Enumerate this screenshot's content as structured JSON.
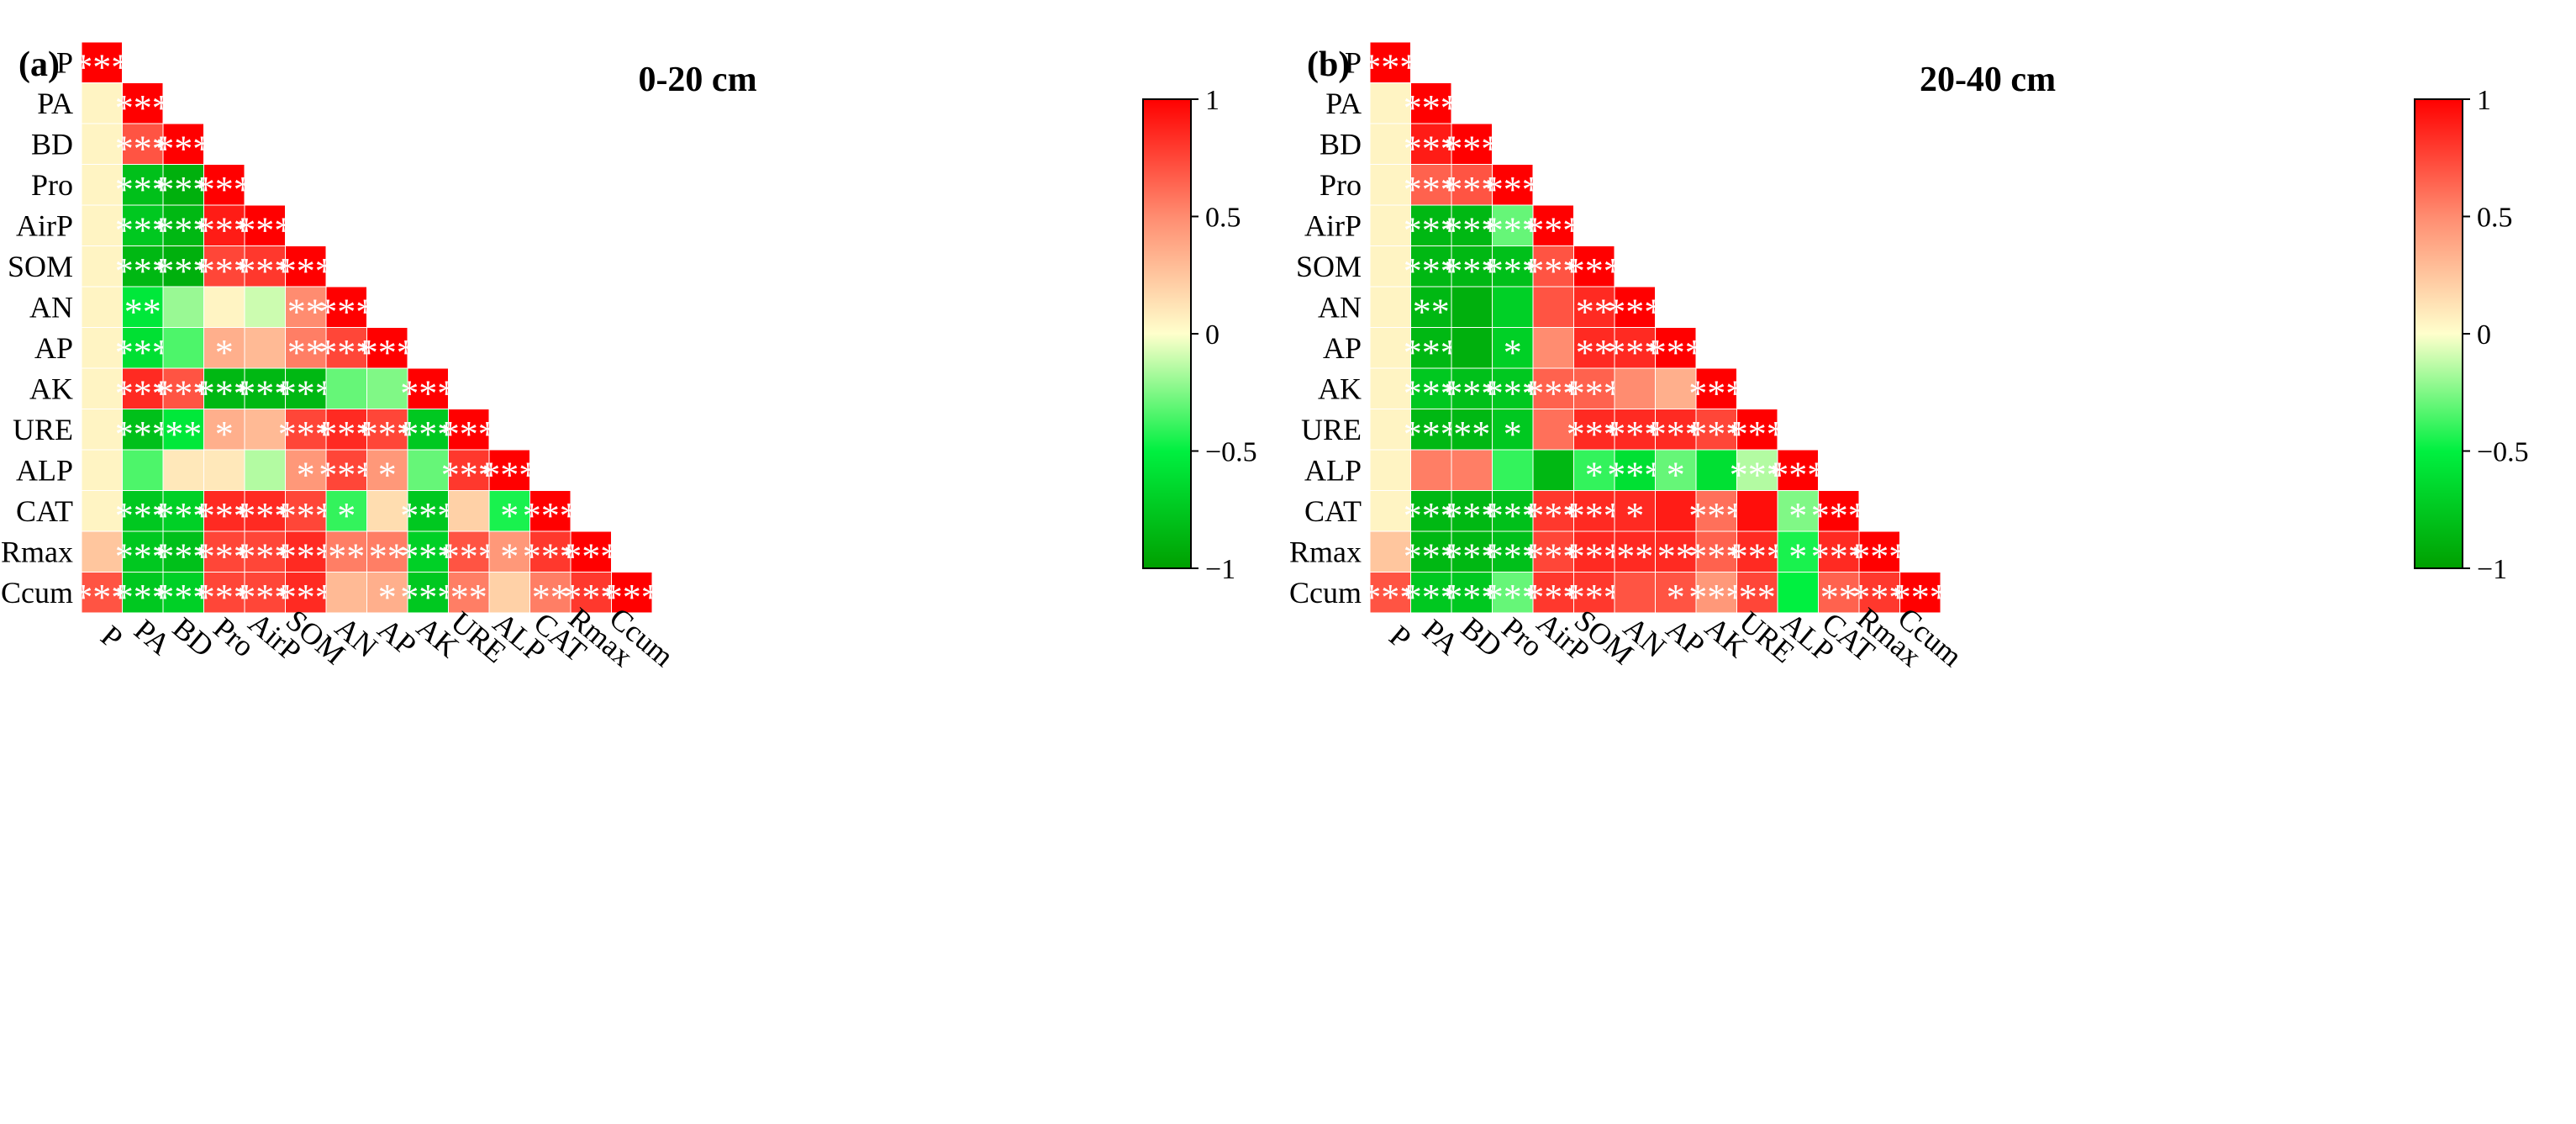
{
  "chart_data": [
    {
      "type": "heatmap",
      "panel_label": "(a)",
      "title": "0-20 cm",
      "variables": [
        "P",
        "PA",
        "BD",
        "Pro",
        "AirP",
        "SOM",
        "AN",
        "AP",
        "AK",
        "URE",
        "ALP",
        "CAT",
        "Rmax",
        "Ccum"
      ],
      "colorbar": {
        "min": -1,
        "max": 1,
        "ticks": [
          1,
          0.5,
          0,
          -0.5,
          -1
        ],
        "tick_labels": [
          "1",
          "0.5",
          "0",
          "−0.5",
          "−1"
        ],
        "colors": {
          "neg": "#00a000",
          "negMid": "#00f040",
          "zero": "#ffffcc",
          "posMid": "#ff8c70",
          "pos": "#ff0000"
        }
      },
      "rows": [
        {
          "var": "P",
          "r": [
            1.0
          ],
          "sig": [
            "***"
          ]
        },
        {
          "var": "PA",
          "r": [
            0.05,
            1.0
          ],
          "sig": [
            "",
            "***"
          ]
        },
        {
          "var": "BD",
          "r": [
            0.05,
            0.7,
            1.0
          ],
          "sig": [
            "",
            "***",
            "***"
          ]
        },
        {
          "var": "Pro",
          "r": [
            0.05,
            -0.8,
            -0.9,
            1.0
          ],
          "sig": [
            "",
            "***",
            "***",
            "***"
          ]
        },
        {
          "var": "AirP",
          "r": [
            0.05,
            -0.75,
            -0.85,
            0.9,
            1.0
          ],
          "sig": [
            "",
            "***",
            "***",
            "***",
            "***"
          ]
        },
        {
          "var": "SOM",
          "r": [
            0.05,
            -0.85,
            -0.9,
            0.75,
            0.8,
            1.0
          ],
          "sig": [
            "",
            "***",
            "***",
            "***",
            "***",
            "***"
          ]
        },
        {
          "var": "AN",
          "r": [
            0.05,
            -0.55,
            -0.2,
            0.05,
            -0.1,
            0.5,
            1.0
          ],
          "sig": [
            "",
            "**",
            "",
            "",
            "",
            "**",
            "***"
          ]
        },
        {
          "var": "AP",
          "r": [
            0.05,
            -0.6,
            -0.35,
            0.35,
            0.3,
            0.55,
            0.75,
            1.0
          ],
          "sig": [
            "",
            "***",
            "",
            "*",
            "",
            "**",
            "***",
            "***"
          ]
        },
        {
          "var": "AK",
          "r": [
            0.05,
            0.85,
            0.7,
            -0.85,
            -0.85,
            -0.85,
            -0.3,
            -0.25,
            1.0
          ],
          "sig": [
            "",
            "***",
            "***",
            "***",
            "***",
            "***",
            "",
            "",
            "***"
          ]
        },
        {
          "var": "URE",
          "r": [
            0.05,
            -0.8,
            -0.55,
            0.35,
            0.3,
            0.75,
            0.85,
            0.75,
            -0.75,
            1.0
          ],
          "sig": [
            "",
            "***",
            "**",
            "*",
            "",
            "***",
            "***",
            "***",
            "***",
            "***"
          ]
        },
        {
          "var": "ALP",
          "r": [
            0.05,
            -0.35,
            0.1,
            0.1,
            -0.15,
            0.45,
            0.75,
            0.45,
            -0.3,
            0.8,
            1.0
          ],
          "sig": [
            "",
            "",
            "",
            "",
            "",
            "*",
            "***",
            "*",
            "",
            "***",
            "***"
          ]
        },
        {
          "var": "CAT",
          "r": [
            0.05,
            -0.75,
            -0.7,
            0.85,
            0.85,
            0.75,
            -0.4,
            0.15,
            -0.75,
            0.2,
            -0.45,
            1.0
          ],
          "sig": [
            "",
            "***",
            "***",
            "***",
            "***",
            "***",
            "*",
            "",
            "***",
            "",
            "*",
            "***"
          ]
        },
        {
          "var": "Rmax",
          "r": [
            0.25,
            -0.75,
            -0.8,
            0.75,
            0.75,
            0.85,
            0.55,
            0.55,
            -0.7,
            0.7,
            0.45,
            0.8,
            1.0
          ],
          "sig": [
            "",
            "***",
            "***",
            "***",
            "***",
            "***",
            "**",
            "**",
            "***",
            "***",
            "*",
            "***",
            "***"
          ]
        },
        {
          "var": "Ccum",
          "r": [
            0.7,
            -0.75,
            -0.7,
            0.75,
            0.75,
            0.85,
            0.3,
            0.35,
            -0.75,
            0.55,
            0.2,
            0.55,
            0.8,
            1.0
          ],
          "sig": [
            "***",
            "***",
            "***",
            "***",
            "***",
            "***",
            "",
            "*",
            "***",
            "**",
            "",
            "**",
            "***",
            "***"
          ]
        }
      ]
    },
    {
      "type": "heatmap",
      "panel_label": "(b)",
      "title": "20-40 cm",
      "variables": [
        "P",
        "PA",
        "BD",
        "Pro",
        "AirP",
        "SOM",
        "AN",
        "AP",
        "AK",
        "URE",
        "ALP",
        "CAT",
        "Rmax",
        "Ccum"
      ],
      "colorbar": {
        "min": -1,
        "max": 1,
        "ticks": [
          1,
          0.5,
          0,
          -0.5,
          -1
        ],
        "tick_labels": [
          "1",
          "0.5",
          "0",
          "−0.5",
          "−1"
        ],
        "colors": {
          "neg": "#00a000",
          "negMid": "#00f040",
          "zero": "#ffffcc",
          "posMid": "#ff8c70",
          "pos": "#ff0000"
        }
      },
      "rows": [
        {
          "var": "P",
          "r": [
            1.0
          ],
          "sig": [
            "***"
          ]
        },
        {
          "var": "PA",
          "r": [
            0.05,
            1.0
          ],
          "sig": [
            "",
            "***"
          ]
        },
        {
          "var": "BD",
          "r": [
            0.05,
            0.9,
            1.0
          ],
          "sig": [
            "",
            "***",
            "***"
          ]
        },
        {
          "var": "Pro",
          "r": [
            0.05,
            0.65,
            0.7,
            1.0
          ],
          "sig": [
            "",
            "***",
            "***",
            "***"
          ]
        },
        {
          "var": "AirP",
          "r": [
            0.05,
            -0.85,
            -0.85,
            -0.3,
            1.0
          ],
          "sig": [
            "",
            "***",
            "***",
            "***",
            "***"
          ]
        },
        {
          "var": "SOM",
          "r": [
            0.05,
            -0.85,
            -0.85,
            -0.8,
            0.7,
            1.0
          ],
          "sig": [
            "",
            "***",
            "***",
            "***",
            "***",
            "***"
          ]
        },
        {
          "var": "AN",
          "r": [
            0.05,
            -0.85,
            -0.9,
            -0.7,
            0.7,
            0.85,
            1.0
          ],
          "sig": [
            "",
            "**",
            "",
            "",
            "",
            "**",
            "***"
          ]
        },
        {
          "var": "AP",
          "r": [
            0.05,
            -0.85,
            -0.9,
            -0.7,
            0.5,
            0.85,
            0.85,
            1.0
          ],
          "sig": [
            "",
            "***",
            "",
            "*",
            "",
            "**",
            "***",
            "***"
          ]
        },
        {
          "var": "AK",
          "r": [
            0.05,
            -0.75,
            -0.8,
            -0.75,
            0.65,
            0.65,
            0.5,
            0.35,
            1.0
          ],
          "sig": [
            "",
            "***",
            "***",
            "***",
            "***",
            "***",
            "",
            "",
            "***"
          ]
        },
        {
          "var": "URE",
          "r": [
            0.05,
            -0.85,
            -0.85,
            -0.75,
            0.6,
            0.85,
            0.85,
            0.85,
            0.75,
            1.0
          ],
          "sig": [
            "",
            "***",
            "**",
            "*",
            "",
            "***",
            "***",
            "***",
            "***",
            "***"
          ]
        },
        {
          "var": "ALP",
          "r": [
            0.05,
            0.55,
            0.55,
            -0.4,
            -0.85,
            -0.4,
            -0.6,
            -0.3,
            -0.6,
            -0.15,
            1.0
          ],
          "sig": [
            "",
            "",
            "",
            "",
            "",
            "*",
            "***",
            "*",
            "",
            "***",
            "***"
          ]
        },
        {
          "var": "CAT",
          "r": [
            0.05,
            -0.85,
            -0.85,
            -0.8,
            0.8,
            0.85,
            0.85,
            0.9,
            0.6,
            0.95,
            -0.25,
            1.0
          ],
          "sig": [
            "",
            "***",
            "***",
            "***",
            "***",
            "***",
            "*",
            "",
            "***",
            "",
            "*",
            "***"
          ]
        },
        {
          "var": "Rmax",
          "r": [
            0.25,
            -0.85,
            -0.85,
            -0.8,
            0.75,
            0.85,
            0.85,
            0.85,
            0.65,
            0.85,
            -0.45,
            0.85,
            1.0
          ],
          "sig": [
            "",
            "***",
            "***",
            "***",
            "***",
            "***",
            "**",
            "**",
            "***",
            "***",
            "*",
            "***",
            "***"
          ]
        },
        {
          "var": "Ccum",
          "r": [
            0.7,
            -0.75,
            -0.75,
            -0.3,
            0.8,
            0.8,
            0.7,
            0.7,
            0.45,
            0.75,
            -0.5,
            0.65,
            0.8,
            1.0
          ],
          "sig": [
            "***",
            "***",
            "***",
            "***",
            "***",
            "***",
            "",
            "*",
            "***",
            "**",
            "",
            "**",
            "***",
            "***"
          ]
        }
      ]
    }
  ]
}
